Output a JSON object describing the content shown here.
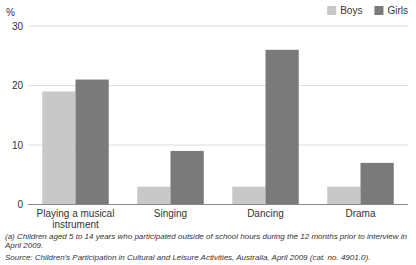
{
  "chart_data": {
    "type": "bar",
    "categories": [
      "Playing a musical\ninstrument",
      "Singing",
      "Dancing",
      "Drama"
    ],
    "series": [
      {
        "name": "Boys",
        "color": "#c8c8c8",
        "values": [
          19,
          3,
          3,
          3
        ]
      },
      {
        "name": "Girls",
        "color": "#7a7a7a",
        "values": [
          21,
          9,
          26,
          7
        ]
      }
    ],
    "ylim": [
      0,
      30
    ],
    "yticks": [
      0,
      10,
      20,
      30
    ],
    "ylabel": "%",
    "grid": true,
    "legend": "upper right",
    "annotations": [
      "(a) Children aged 5 to 14 years who participated outside of school hours during the 12 months prior to interview in April 2009.",
      "Source: Children's Participation in Cultural and Leisure Activities, Australia, April 2009 (cat.  no.  4901.0)."
    ]
  }
}
